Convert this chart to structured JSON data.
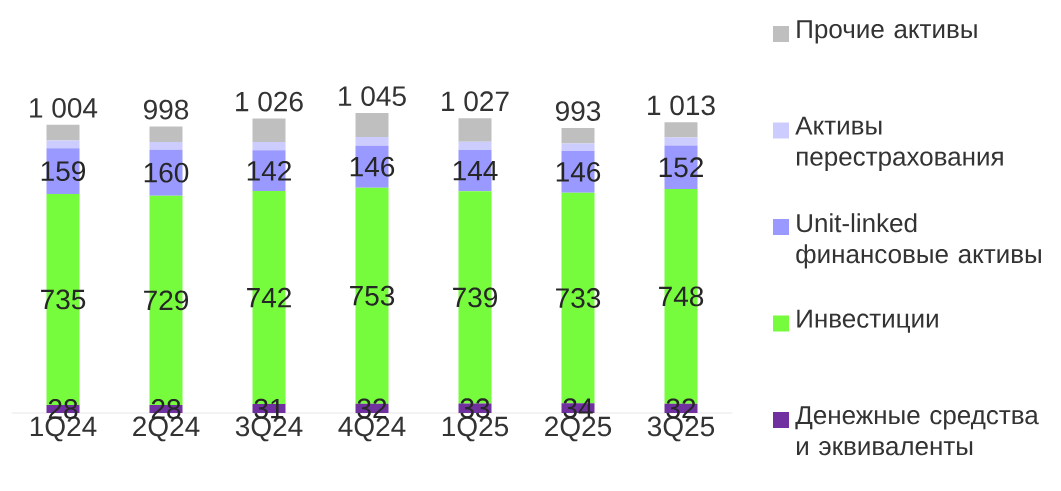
{
  "chart_data": {
    "type": "bar",
    "stacked": true,
    "legend": "right",
    "categories": [
      "1Q24",
      "2Q24",
      "3Q24",
      "4Q24",
      "1Q25",
      "2Q25",
      "3Q25"
    ],
    "series": [
      {
        "name": "Денежные средства и эквиваленты",
        "color": "#7030a0",
        "values": [
          28,
          28,
          31,
          32,
          33,
          34,
          32
        ],
        "value_labels": [
          "28",
          "28",
          "31",
          "32",
          "33",
          "34",
          "32"
        ]
      },
      {
        "name": "Инвестиции",
        "color": "#77fb3d",
        "values": [
          735,
          729,
          742,
          753,
          739,
          733,
          748
        ],
        "value_labels": [
          "735",
          "729",
          "742",
          "753",
          "739",
          "733",
          "748"
        ]
      },
      {
        "name": "Unit-linked финансовые активы",
        "color": "#9999ff",
        "values": [
          159,
          160,
          142,
          146,
          144,
          146,
          152
        ],
        "value_labels": [
          "159",
          "160",
          "142",
          "146",
          "144",
          "146",
          "152"
        ]
      },
      {
        "name": "Активы перестрахования",
        "color": "#ccccff",
        "values": [
          27,
          27,
          29,
          30,
          29,
          26,
          28
        ]
      },
      {
        "name": "Прочие активы",
        "color": "#bfbfbf",
        "values": [
          55,
          54,
          82,
          84,
          82,
          54,
          53
        ]
      }
    ],
    "totals": [
      "1 004",
      "998",
      "1 026",
      "1 045",
      "1 027",
      "993",
      "1 013"
    ]
  }
}
